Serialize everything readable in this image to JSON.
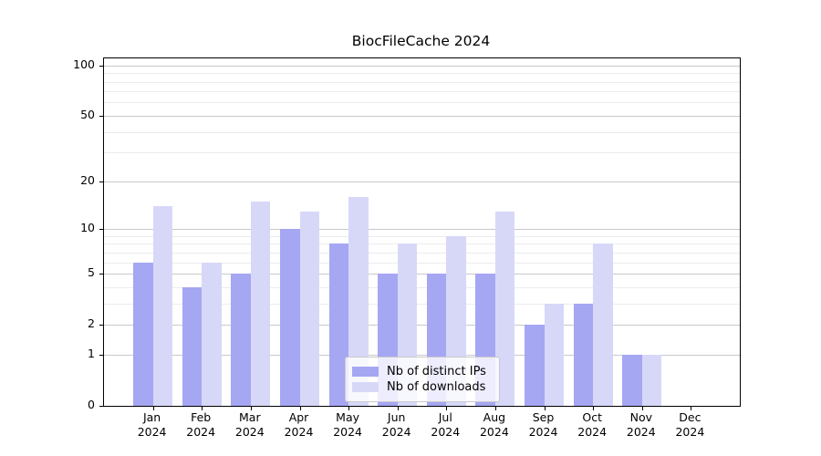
{
  "title": "BiocFileCache 2024",
  "chart_data": {
    "type": "bar",
    "title": "BiocFileCache 2024",
    "categories": [
      "Jan",
      "Feb",
      "Mar",
      "Apr",
      "May",
      "Jun",
      "Jul",
      "Aug",
      "Sep",
      "Oct",
      "Nov",
      "Dec"
    ],
    "year_label": "2024",
    "series": [
      {
        "name": "Nb of distinct IPs",
        "color": "#a5a7f3",
        "values": [
          6,
          4,
          5,
          10,
          8,
          5,
          5,
          5,
          2,
          3,
          1,
          0
        ]
      },
      {
        "name": "Nb of downloads",
        "color": "#d7d8f8",
        "values": [
          14,
          6,
          15,
          13,
          16,
          8,
          9,
          13,
          3,
          8,
          1,
          0
        ]
      }
    ],
    "yscale": "log1p",
    "ylim": [
      0,
      110
    ],
    "yticks_major": [
      0,
      1,
      2,
      5,
      10,
      20,
      50,
      100
    ],
    "yticks_minor": [
      3,
      4,
      6,
      7,
      8,
      9,
      30,
      40,
      60,
      70,
      80,
      90
    ],
    "xlabel": "",
    "ylabel": "",
    "grid": "horizontal-only",
    "legend_position": "bottom-center",
    "colors": {
      "grid_major": "#c9c9c9",
      "grid_minor": "#ececec",
      "axis": "#000000",
      "background": "#ffffff"
    }
  }
}
